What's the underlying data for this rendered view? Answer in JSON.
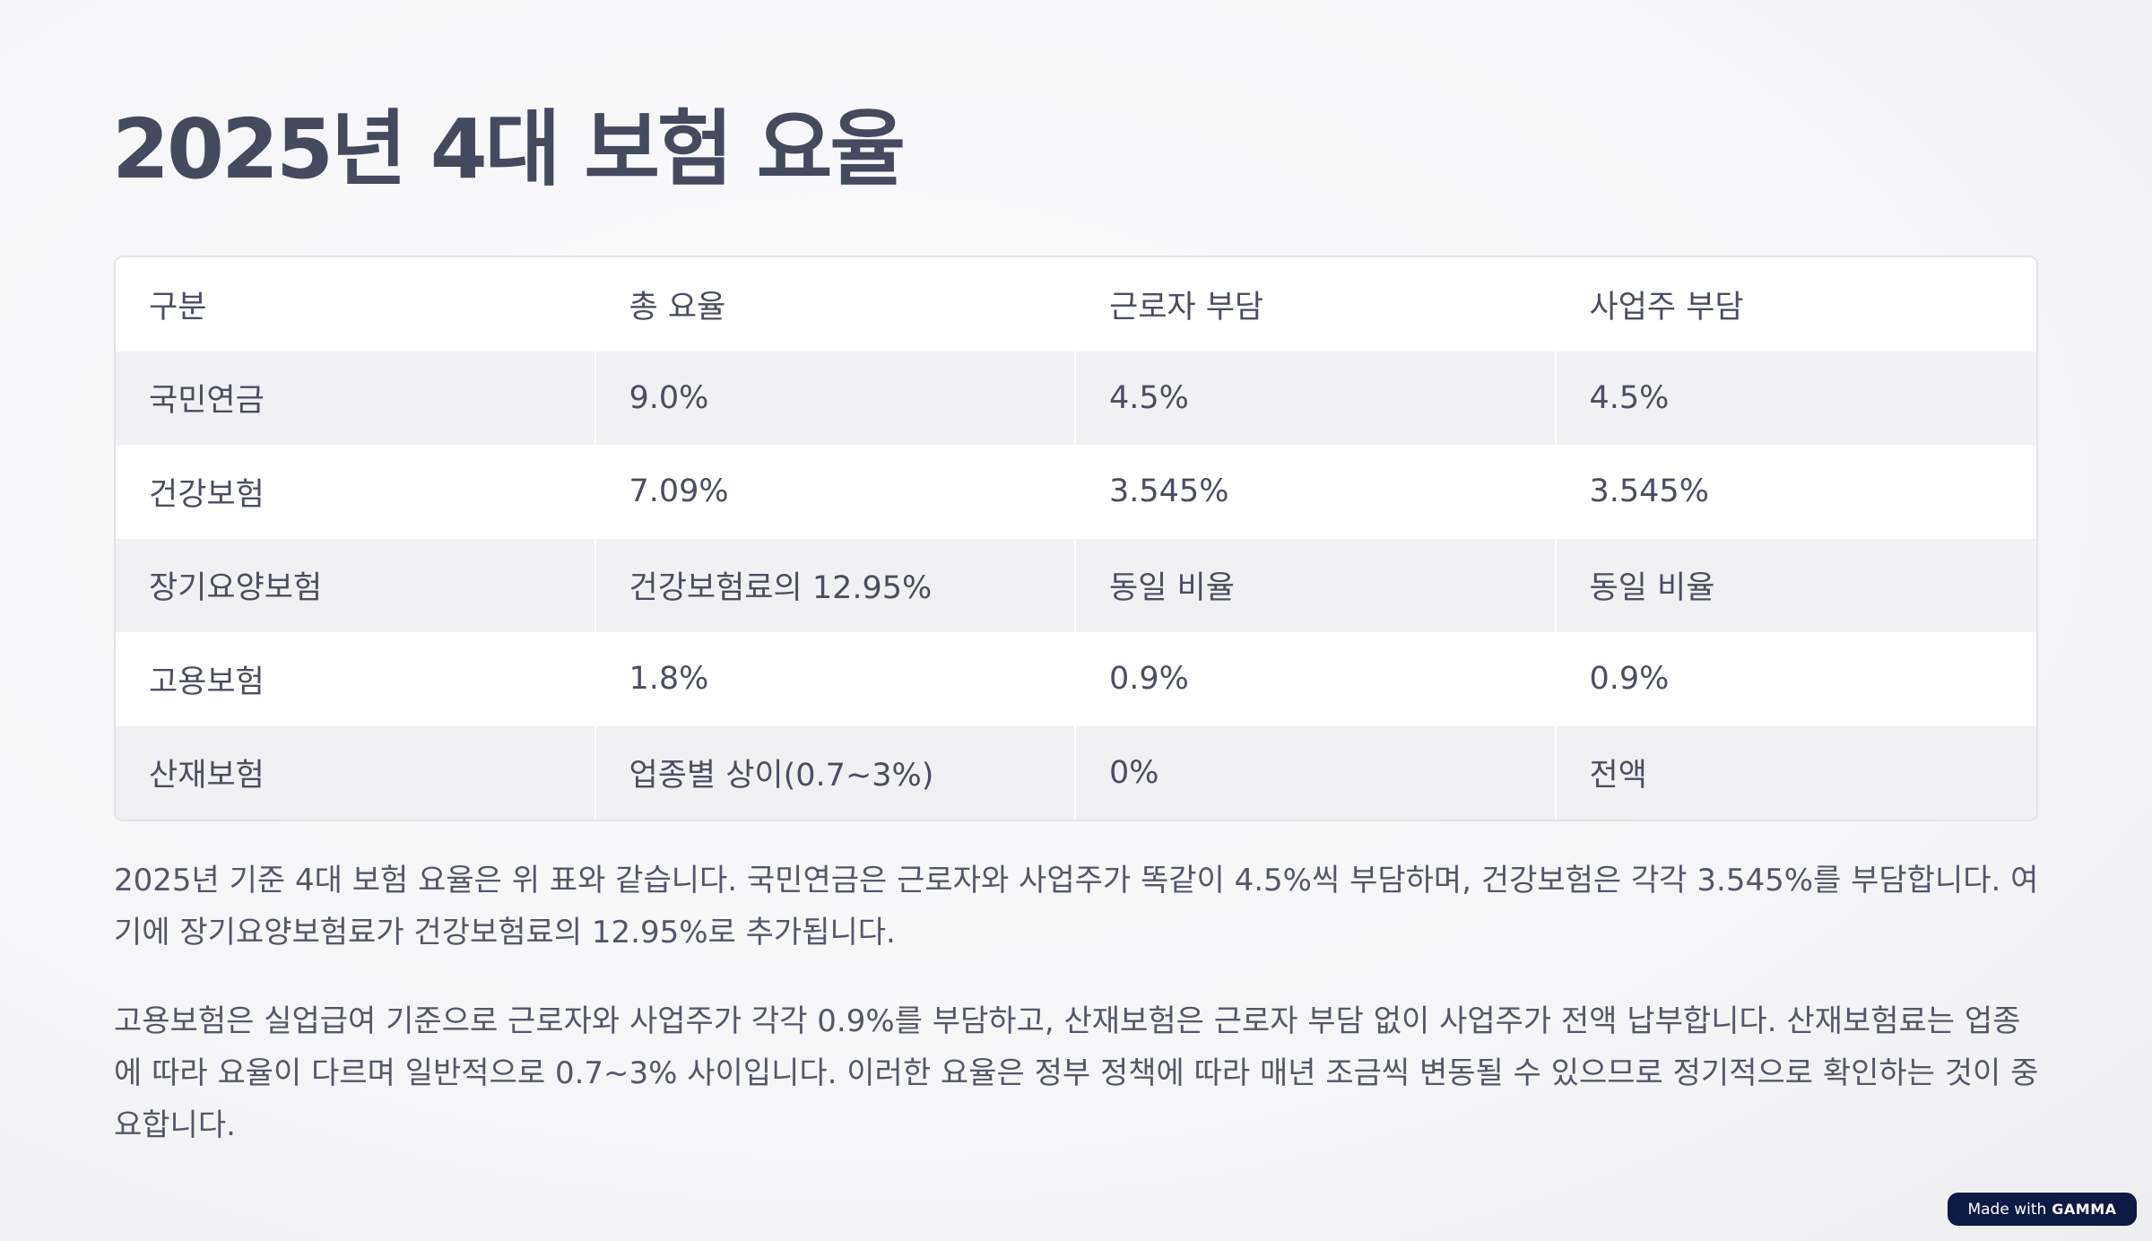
{
  "title": "2025년 4대 보험 요율",
  "table": {
    "headers": [
      "구분",
      "총 요율",
      "근로자 부담",
      "사업주 부담"
    ],
    "rows": [
      [
        "국민연금",
        "9.0%",
        "4.5%",
        "4.5%"
      ],
      [
        "건강보험",
        "7.09%",
        "3.545%",
        "3.545%"
      ],
      [
        "장기요양보험",
        "건강보험료의 12.95%",
        "동일 비율",
        "동일 비율"
      ],
      [
        "고용보험",
        "1.8%",
        "0.9%",
        "0.9%"
      ],
      [
        "산재보험",
        "업종별 상이(0.7~3%)",
        "0%",
        "전액"
      ]
    ]
  },
  "paragraphs": [
    "2025년 기준 4대 보험 요율은 위 표와 같습니다. 국민연금은 근로자와 사업주가 똑같이 4.5%씩 부담하며, 건강보험은 각각 3.545%를 부담합니다. 여기에 장기요양보험료가 건강보험료의 12.95%로 추가됩니다.",
    "고용보험은 실업급여 기준으로 근로자와 사업주가 각각 0.9%를 부담하고, 산재보험은 근로자 부담 없이 사업주가 전액 납부합니다. 산재보험료는 업종에 따라 요율이 다르며 일반적으로 0.7~3% 사이입니다. 이러한 요율은 정부 정책에 따라 매년 조금씩 변동될 수 있으므로 정기적으로 확인하는 것이 중요합니다."
  ],
  "badge": {
    "prefix": "Made with",
    "brand": "GAMMA"
  }
}
